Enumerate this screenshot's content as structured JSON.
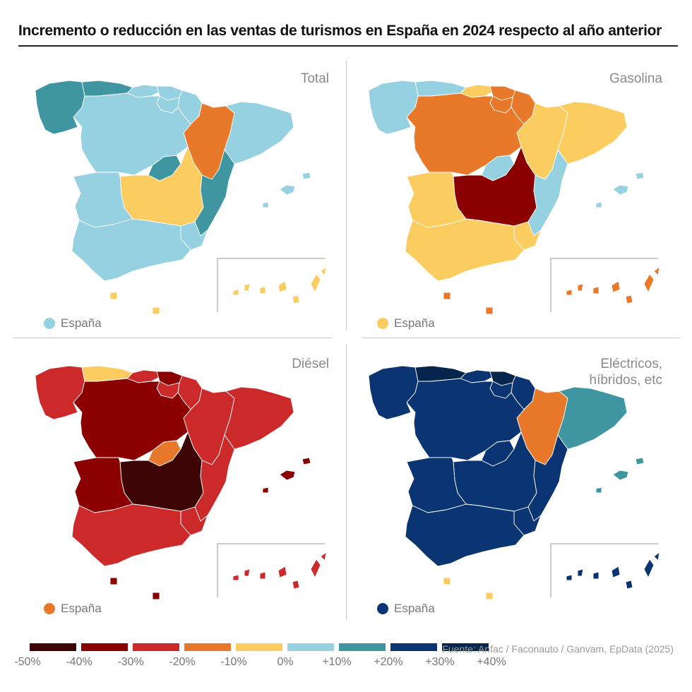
{
  "title": "Incremento o reducción en las ventas de turismos en España en 2024 respecto al año anterior",
  "colors": {
    "c_m50": "#3d0505",
    "c_m40": "#8b0000",
    "c_m30": "#cc2a2a",
    "c_m20": "#e8782a",
    "c_m10": "#fbcd61",
    "c_0": "#95d1e0",
    "c_p10": "#3f95a0",
    "c_p20": "#0a3572",
    "c_p30": "#06254c"
  },
  "legend": {
    "ticks": [
      "-50%",
      "-40%",
      "-30%",
      "-20%",
      "-10%",
      "0%",
      "+10%",
      "+20%",
      "+30%",
      "+40%"
    ],
    "bins": [
      "c_m50",
      "c_m40",
      "c_m30",
      "c_m20",
      "c_m10",
      "c_0",
      "c_p10",
      "c_p20",
      "c_p30"
    ]
  },
  "source": "Fuente: Anfac / Faconauto / Ganvam, EpData (2025)",
  "espana_label": "España",
  "panels": [
    {
      "label": "Total",
      "espana": "c_0",
      "regions": {
        "galicia": "c_p10",
        "asturias": "c_p10",
        "cantabria": "c_0",
        "pais_vasco": "c_0",
        "navarra": "c_0",
        "la_rioja": "c_0",
        "aragon": "c_m20",
        "cataluna": "c_0",
        "castilla_leon": "c_0",
        "madrid": "c_p10",
        "castilla_la_mancha": "c_m10",
        "valencia": "c_p10",
        "extremadura": "c_0",
        "andalucia": "c_0",
        "murcia": "c_0",
        "baleares": "c_0",
        "canarias": "c_m10",
        "ceuta": "c_m10",
        "melilla": "c_m10"
      }
    },
    {
      "label": "Gasolina",
      "espana": "c_m10",
      "regions": {
        "galicia": "c_0",
        "asturias": "c_0",
        "cantabria": "c_m10",
        "pais_vasco": "c_m20",
        "navarra": "c_m20",
        "la_rioja": "c_m20",
        "aragon": "c_m10",
        "cataluna": "c_m10",
        "castilla_leon": "c_m20",
        "madrid": "c_0",
        "castilla_la_mancha": "c_m40",
        "valencia": "c_0",
        "extremadura": "c_m10",
        "andalucia": "c_m10",
        "murcia": "c_m10",
        "baleares": "c_0",
        "canarias": "c_m20",
        "ceuta": "c_m20",
        "melilla": "c_m20"
      }
    },
    {
      "label": "Diésel",
      "espana": "c_m20",
      "regions": {
        "galicia": "c_m30",
        "asturias": "c_m10",
        "cantabria": "c_m30",
        "pais_vasco": "c_m40",
        "navarra": "c_m30",
        "la_rioja": "c_m30",
        "aragon": "c_m30",
        "cataluna": "c_m30",
        "castilla_leon": "c_m40",
        "madrid": "c_m20",
        "castilla_la_mancha": "c_m50",
        "valencia": "c_m30",
        "extremadura": "c_m40",
        "andalucia": "c_m30",
        "murcia": "c_m30",
        "baleares": "c_m40",
        "canarias": "c_m30",
        "ceuta": "c_m40",
        "melilla": "c_m40"
      }
    },
    {
      "label": "Eléctricos,\nhíbridos, etc",
      "espana": "c_p20",
      "regions": {
        "galicia": "c_p20",
        "asturias": "c_p30",
        "cantabria": "c_p20",
        "pais_vasco": "c_p30",
        "navarra": "c_p20",
        "la_rioja": "c_p20",
        "aragon": "c_m20",
        "cataluna": "c_p10",
        "castilla_leon": "c_p20",
        "madrid": "c_p20",
        "castilla_la_mancha": "c_p20",
        "valencia": "c_p20",
        "extremadura": "c_p20",
        "andalucia": "c_p20",
        "murcia": "c_p20",
        "baleares": "c_p10",
        "canarias": "c_p20",
        "ceuta": "c_m10",
        "melilla": "c_m10"
      }
    }
  ]
}
